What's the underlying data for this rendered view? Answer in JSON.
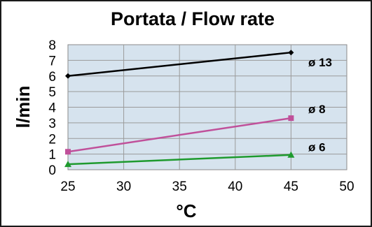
{
  "chart_data": {
    "type": "line",
    "title": "Portata / Flow rate",
    "xlabel": "°C",
    "ylabel": "l/min",
    "xlim": [
      25,
      50
    ],
    "ylim": [
      0,
      8
    ],
    "x_ticks": [
      "25",
      "30",
      "35",
      "40",
      "45",
      "50"
    ],
    "y_ticks": [
      "0",
      "1",
      "2",
      "3",
      "4",
      "5",
      "6",
      "7",
      "8"
    ],
    "grid": true,
    "legend": "none",
    "plot_background": "#d6e3ee",
    "series": [
      {
        "name": "ø 13",
        "x": [
          25,
          45
        ],
        "values": [
          6.0,
          7.5
        ],
        "color": "#000000",
        "marker": "diamond"
      },
      {
        "name": "ø 8",
        "x": [
          25,
          45
        ],
        "values": [
          1.15,
          3.3
        ],
        "color": "#c0509a",
        "marker": "square"
      },
      {
        "name": "ø 6",
        "x": [
          25,
          45
        ],
        "values": [
          0.35,
          0.95
        ],
        "color": "#1e9a2e",
        "marker": "triangle"
      }
    ]
  }
}
